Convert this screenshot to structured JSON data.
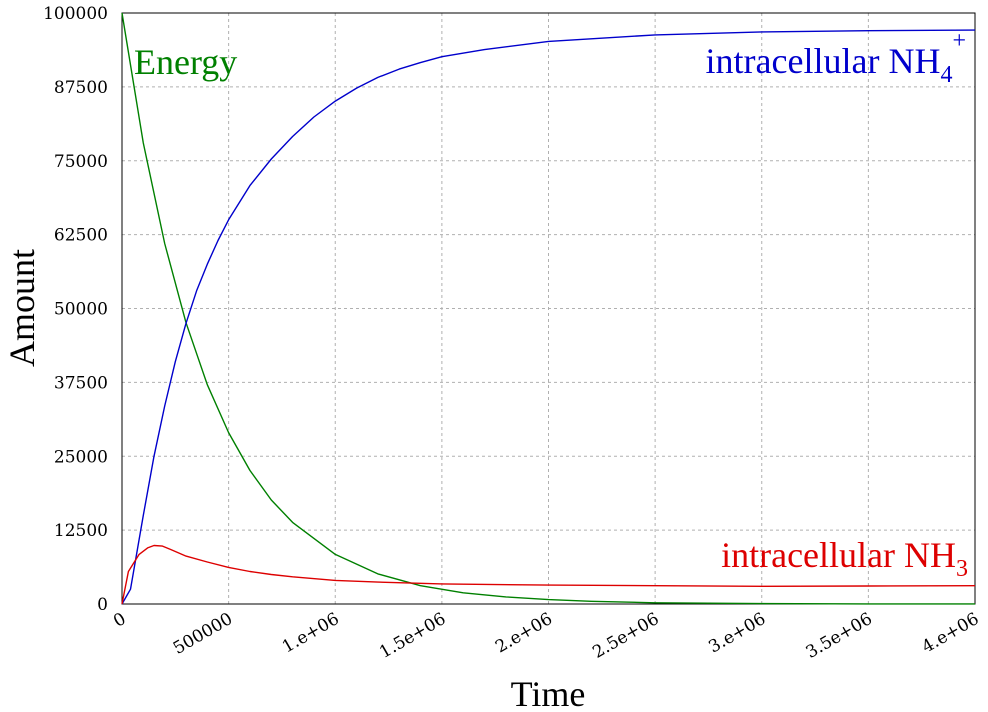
{
  "chart_data": {
    "type": "line",
    "title": "",
    "xlabel": "Time",
    "ylabel": "Amount",
    "xlim": [
      0,
      4000000
    ],
    "ylim": [
      0,
      100000
    ],
    "grid": true,
    "x_ticks": [
      0,
      500000,
      1000000,
      1500000,
      2000000,
      2500000,
      3000000,
      3500000,
      4000000
    ],
    "x_tick_labels": [
      "0",
      "500000",
      "1.e+06",
      "1.5e+06",
      "2.e+06",
      "2.5e+06",
      "3.e+06",
      "3.5e+06",
      "4.e+06"
    ],
    "y_ticks": [
      0,
      12500,
      25000,
      37500,
      50000,
      62500,
      75000,
      87500,
      100000
    ],
    "y_tick_labels": [
      "0",
      "12500",
      "25000",
      "37500",
      "50000",
      "62500",
      "75000",
      "87500",
      "100000"
    ],
    "series": [
      {
        "name": "Energy",
        "label_main": "Energy",
        "color": "#008000",
        "x": [
          0,
          100000,
          200000,
          300000,
          400000,
          500000,
          600000,
          700000,
          800000,
          1000000,
          1200000,
          1400000,
          1600000,
          1800000,
          2000000,
          2200000,
          2500000,
          3000000,
          3500000,
          4000000
        ],
        "y": [
          100000,
          78000,
          61000,
          47600,
          37100,
          29000,
          22600,
          17600,
          13800,
          8400,
          5100,
          3100,
          1900,
          1200,
          750,
          450,
          200,
          60,
          20,
          10
        ]
      },
      {
        "name": "intracellular NH4+",
        "label_main": "intracellular NH",
        "label_sub": "4",
        "label_sup": "+",
        "color": "#0000cc",
        "x": [
          0,
          40000,
          100000,
          150000,
          200000,
          250000,
          300000,
          350000,
          400000,
          450000,
          500000,
          600000,
          700000,
          800000,
          900000,
          1000000,
          1100000,
          1200000,
          1300000,
          1400000,
          1500000,
          1700000,
          2000000,
          2500000,
          3000000,
          3500000,
          4000000
        ],
        "y": [
          0,
          2500,
          15000,
          25000,
          33500,
          41000,
          47500,
          53000,
          57500,
          61500,
          65000,
          70800,
          75300,
          79100,
          82400,
          85100,
          87300,
          89100,
          90500,
          91600,
          92600,
          93800,
          95200,
          96300,
          96800,
          97000,
          97100
        ]
      },
      {
        "name": "intracellular NH3",
        "label_main": "intracellular NH",
        "label_sub": "3",
        "label_sup": "",
        "color": "#dd0000",
        "x": [
          0,
          30000,
          80000,
          120000,
          150000,
          190000,
          230000,
          300000,
          400000,
          500000,
          600000,
          700000,
          800000,
          1000000,
          1200000,
          1500000,
          2000000,
          2500000,
          3000000,
          3500000,
          4000000
        ],
        "y": [
          0,
          5500,
          8400,
          9500,
          9900,
          9800,
          9200,
          8100,
          7100,
          6200,
          5500,
          5000,
          4600,
          4000,
          3700,
          3400,
          3200,
          3100,
          3000,
          3050,
          3100
        ]
      }
    ]
  }
}
